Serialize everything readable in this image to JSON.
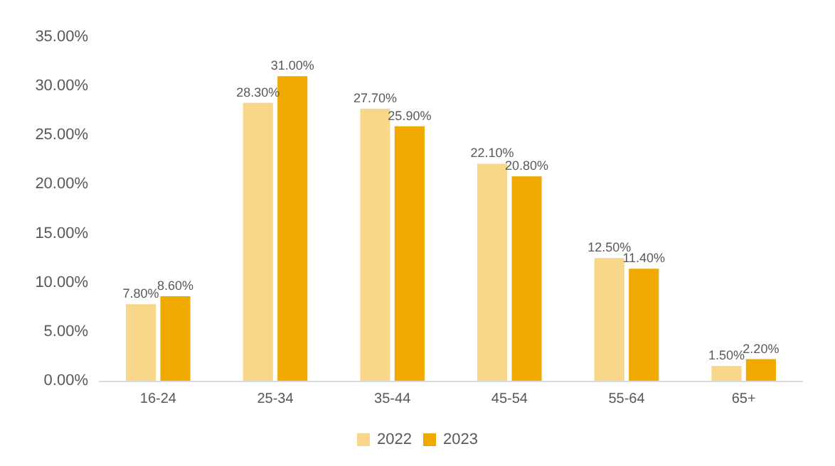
{
  "chart_data": {
    "type": "bar",
    "categories": [
      "16-24",
      "25-34",
      "35-44",
      "45-54",
      "55-64",
      "65+"
    ],
    "series": [
      {
        "name": "2022",
        "color": "#f8d68a",
        "values": [
          7.8,
          28.3,
          27.7,
          22.1,
          12.5,
          1.5
        ],
        "value_labels": [
          "7.80%",
          "28.30%",
          "27.70%",
          "22.10%",
          "12.50%",
          "1.50%"
        ]
      },
      {
        "name": "2023",
        "color": "#f0a900",
        "values": [
          8.6,
          31,
          25.9,
          20.8,
          11.4,
          2.2
        ],
        "value_labels": [
          "8.60%",
          "31.00%",
          "25.90%",
          "20.80%",
          "11.40%",
          "2.20%"
        ]
      }
    ],
    "ylim": [
      0,
      35
    ],
    "yticks": [
      {
        "value": 0,
        "label": "0.00%"
      },
      {
        "value": 5,
        "label": "5.00%"
      },
      {
        "value": 10,
        "label": "10.00%"
      },
      {
        "value": 15,
        "label": "15.00%"
      },
      {
        "value": 20,
        "label": "20.00%"
      },
      {
        "value": 25,
        "label": "25.00%"
      },
      {
        "value": 30,
        "label": "30.00%"
      },
      {
        "value": 35,
        "label": "35.00%"
      }
    ],
    "grid": false,
    "legend": "bottom"
  }
}
